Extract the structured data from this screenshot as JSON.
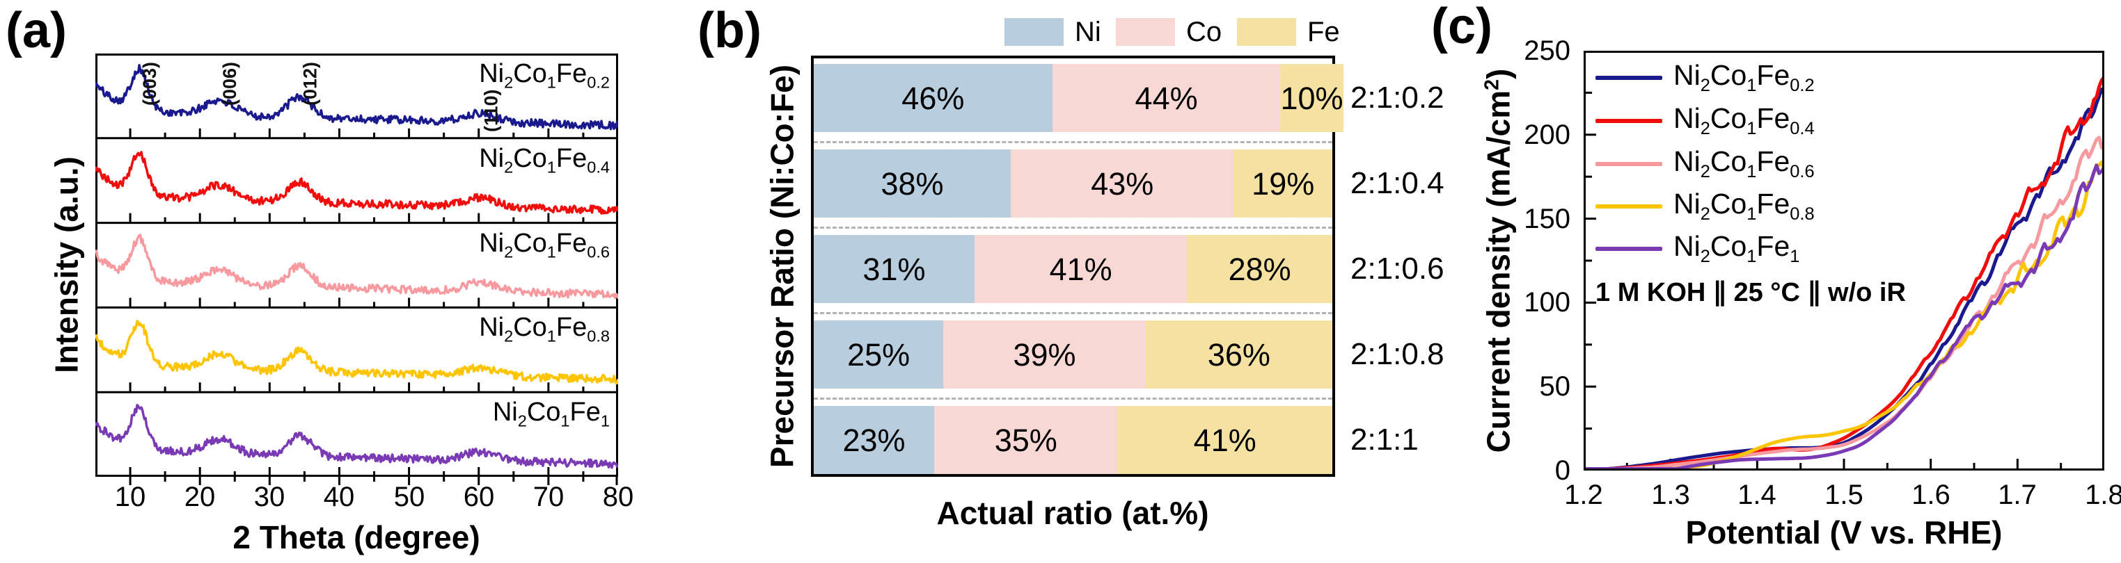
{
  "panels": {
    "a": "(a)",
    "b": "(b)",
    "c": "(c)"
  },
  "chart_data": [
    {
      "id": "xrd_patterns",
      "type": "line",
      "xlabel": "2 Theta (degree)",
      "ylabel": "Intensity (a.u.)",
      "x_range": [
        5,
        80
      ],
      "x_ticks": [
        10,
        20,
        30,
        40,
        50,
        60,
        70,
        80
      ],
      "x_minor_step": 5,
      "y_axis": "arbitrary units, no tick labels",
      "layout": "5 vertically stacked subpanels, one per sample",
      "peak_annotations": [
        {
          "label": "(003)",
          "two_theta": 11.3
        },
        {
          "label": "(006)",
          "two_theta": 22.8
        },
        {
          "label": "(012)",
          "two_theta": 34.3
        },
        {
          "label": "(110)",
          "two_theta": 60.3
        }
      ],
      "profile": {
        "description": "broad LDH peaks over decaying noisy background",
        "left_edge": {
          "height": 36,
          "decay": 3.8
        },
        "baseline": {
          "start": 24,
          "slope": 0.22
        },
        "noise_amplitude": 5,
        "peaks": [
          {
            "center": 11.3,
            "height": 50,
            "sigma": 1.15
          },
          {
            "center": 22.8,
            "height": 19,
            "sigma": 2.1
          },
          {
            "center": 34.3,
            "height": 26,
            "sigma": 1.7
          },
          {
            "center": 60.3,
            "height": 11,
            "sigma": 2.3
          }
        ]
      },
      "series": [
        {
          "formula": [
            [
              "Ni",
              "2"
            ],
            [
              "Co",
              "1"
            ],
            [
              "Fe",
              "0.2"
            ]
          ],
          "color": "#1a1a8e"
        },
        {
          "formula": [
            [
              "Ni",
              "2"
            ],
            [
              "Co",
              "1"
            ],
            [
              "Fe",
              "0.4"
            ]
          ],
          "color": "#f20d0d"
        },
        {
          "formula": [
            [
              "Ni",
              "2"
            ],
            [
              "Co",
              "1"
            ],
            [
              "Fe",
              "0.6"
            ]
          ],
          "color": "#f79aa0"
        },
        {
          "formula": [
            [
              "Ni",
              "2"
            ],
            [
              "Co",
              "1"
            ],
            [
              "Fe",
              "0.8"
            ]
          ],
          "color": "#fdc400"
        },
        {
          "formula": [
            [
              "Ni",
              "2"
            ],
            [
              "Co",
              "1"
            ],
            [
              "Fe",
              "1"
            ]
          ],
          "color": "#7a3ab4"
        }
      ]
    },
    {
      "id": "composition_bars",
      "type": "bar",
      "stacked": true,
      "orientation": "horizontal",
      "xlabel": "Actual ratio (at.%)",
      "ylabel": "Precursor Ratio (Ni:Co:Fe)",
      "legend_position": "above plot",
      "legend": [
        {
          "name": "Ni",
          "color": "#b8cede"
        },
        {
          "name": "Co",
          "color": "#f8d8d5"
        },
        {
          "name": "Fe",
          "color": "#f5e2a2"
        }
      ],
      "categories": [
        "2:1:0.2",
        "2:1:0.4",
        "2:1:0.6",
        "2:1:0.8",
        "2:1:1"
      ],
      "series": [
        {
          "name": "Ni",
          "values": [
            46,
            38,
            31,
            25,
            23
          ]
        },
        {
          "name": "Co",
          "values": [
            44,
            43,
            41,
            39,
            35
          ]
        },
        {
          "name": "Fe",
          "values": [
            10,
            19,
            28,
            36,
            41
          ]
        }
      ],
      "value_suffix": "%"
    },
    {
      "id": "lsv_curves",
      "type": "line",
      "xlabel": "Potential (V vs. RHE)",
      "ylabel": "Current density (mA/cm²)",
      "ylabel_parts": {
        "main": "Current density (mA/cm",
        "sup": "2",
        "close": ")"
      },
      "annotation": "1 M KOH ∥ 25 °C ∥ w/o iR",
      "x_range": [
        1.2,
        1.8
      ],
      "x_tick_step": 0.1,
      "x_minor_step": 0.05,
      "y_range": [
        0,
        250
      ],
      "y_tick_step": 50,
      "y_minor_step": 25,
      "legend_position": "inside top-left",
      "series": [
        {
          "formula": [
            [
              "Ni",
              "2"
            ],
            [
              "Co",
              "1"
            ],
            [
              "Fe",
              "0.2"
            ]
          ],
          "color": "#1a1a8e",
          "points": [
            [
              1.2,
              0
            ],
            [
              1.24,
              1.5
            ],
            [
              1.28,
              4
            ],
            [
              1.32,
              7.5
            ],
            [
              1.36,
              10.5
            ],
            [
              1.4,
              12.5
            ],
            [
              1.44,
              13.5
            ],
            [
              1.47,
              13.5
            ],
            [
              1.5,
              16
            ],
            [
              1.53,
              25
            ],
            [
              1.56,
              38
            ],
            [
              1.6,
              62
            ],
            [
              1.64,
              96
            ],
            [
              1.67,
              120
            ],
            [
              1.7,
              147
            ],
            [
              1.73,
              168
            ],
            [
              1.76,
              192
            ],
            [
              1.78,
              205
            ],
            [
              1.8,
              236
            ]
          ]
        },
        {
          "formula": [
            [
              "Ni",
              "2"
            ],
            [
              "Co",
              "1"
            ],
            [
              "Fe",
              "0.4"
            ]
          ],
          "color": "#f20d0d",
          "points": [
            [
              1.2,
              0
            ],
            [
              1.26,
              2
            ],
            [
              1.3,
              4
            ],
            [
              1.34,
              6.5
            ],
            [
              1.38,
              9.5
            ],
            [
              1.42,
              13.5
            ],
            [
              1.45,
              12
            ],
            [
              1.47,
              13
            ],
            [
              1.5,
              19
            ],
            [
              1.53,
              29
            ],
            [
              1.56,
              42
            ],
            [
              1.6,
              70
            ],
            [
              1.64,
              103
            ],
            [
              1.67,
              128
            ],
            [
              1.7,
              155
            ],
            [
              1.73,
              172
            ],
            [
              1.76,
              200
            ],
            [
              1.78,
              213
            ],
            [
              1.8,
              233
            ]
          ]
        },
        {
          "formula": [
            [
              "Ni",
              "2"
            ],
            [
              "Co",
              "1"
            ],
            [
              "Fe",
              "0.6"
            ]
          ],
          "color": "#f79aa0",
          "points": [
            [
              1.2,
              0
            ],
            [
              1.28,
              2
            ],
            [
              1.34,
              5.5
            ],
            [
              1.4,
              10
            ],
            [
              1.44,
              12.5
            ],
            [
              1.47,
              13
            ],
            [
              1.5,
              15
            ],
            [
              1.53,
              22
            ],
            [
              1.56,
              32
            ],
            [
              1.6,
              55
            ],
            [
              1.64,
              82
            ],
            [
              1.68,
              110
            ],
            [
              1.72,
              138
            ],
            [
              1.76,
              168
            ],
            [
              1.8,
              204
            ]
          ]
        },
        {
          "formula": [
            [
              "Ni",
              "2"
            ],
            [
              "Co",
              "1"
            ],
            [
              "Fe",
              "0.8"
            ]
          ],
          "color": "#fdc400",
          "points": [
            [
              1.2,
              0
            ],
            [
              1.3,
              1
            ],
            [
              1.34,
              3
            ],
            [
              1.38,
              9
            ],
            [
              1.42,
              17
            ],
            [
              1.45,
              20
            ],
            [
              1.48,
              21
            ],
            [
              1.52,
              26
            ],
            [
              1.56,
              38
            ],
            [
              1.6,
              58
            ],
            [
              1.64,
              80
            ],
            [
              1.68,
              103
            ],
            [
              1.72,
              122
            ],
            [
              1.76,
              150
            ],
            [
              1.8,
              183
            ]
          ]
        },
        {
          "formula": [
            [
              "Ni",
              "2"
            ],
            [
              "Co",
              "1"
            ],
            [
              "Fe",
              "1"
            ]
          ],
          "color": "#7a3ab4",
          "points": [
            [
              1.2,
              0
            ],
            [
              1.3,
              0.5
            ],
            [
              1.34,
              4
            ],
            [
              1.38,
              6.5
            ],
            [
              1.42,
              7
            ],
            [
              1.46,
              7.5
            ],
            [
              1.49,
              10
            ],
            [
              1.52,
              15
            ],
            [
              1.56,
              31
            ],
            [
              1.6,
              56
            ],
            [
              1.64,
              84
            ],
            [
              1.68,
              104
            ],
            [
              1.72,
              121
            ],
            [
              1.76,
              148
            ],
            [
              1.8,
              191
            ]
          ]
        }
      ]
    }
  ]
}
